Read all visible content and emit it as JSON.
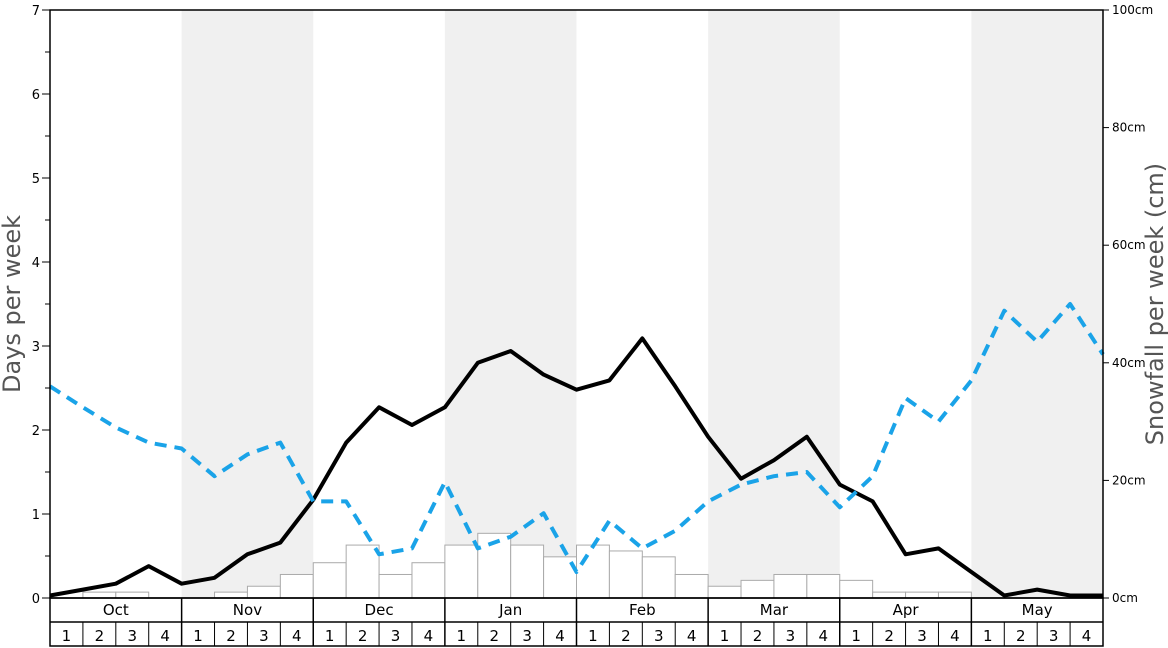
{
  "chart_data": {
    "type": "bar",
    "left_axis": {
      "title": "Days per week",
      "min": 0,
      "max": 7,
      "ticks": [
        "0",
        "1",
        "2",
        "3",
        "4",
        "5",
        "6",
        "7"
      ]
    },
    "right_axis": {
      "title": "Snowfall per week (cm)",
      "min": 0,
      "max": 100,
      "ticks": [
        "0cm",
        "20cm",
        "40cm",
        "60cm",
        "80cm",
        "100cm"
      ]
    },
    "months": [
      "Oct",
      "Nov",
      "Dec",
      "Jan",
      "Feb",
      "Mar",
      "Apr",
      "May"
    ],
    "weeks": [
      "1",
      "2",
      "3",
      "4"
    ],
    "shaded_months": [
      "Nov",
      "Jan",
      "Mar",
      "May"
    ],
    "snowfall_bars_cm": [
      0,
      1,
      1,
      0,
      0,
      1,
      2,
      4,
      6,
      9,
      4,
      6,
      9,
      11,
      9,
      7,
      9,
      8,
      7,
      4,
      2,
      3,
      4,
      4,
      3,
      1,
      1,
      1,
      0,
      0,
      0,
      0
    ],
    "series": [
      {
        "style": "solid-black",
        "axis": "left",
        "values": [
          0.03,
          0.1,
          0.17,
          0.38,
          0.17,
          0.24,
          0.52,
          0.66,
          1.17,
          1.85,
          2.27,
          2.06,
          2.27,
          2.8,
          2.94,
          2.66,
          2.48,
          2.59,
          3.09,
          2.52,
          1.92,
          1.42,
          1.64,
          1.92,
          1.35,
          1.15,
          0.52,
          0.59,
          0.31,
          0.03,
          0.1,
          0.03,
          0.03
        ]
      },
      {
        "style": "dashed-blue",
        "axis": "left",
        "values": [
          2.52,
          2.27,
          2.03,
          1.85,
          1.78,
          1.45,
          1.71,
          1.85,
          1.15,
          1.15,
          0.52,
          0.59,
          1.38,
          0.59,
          0.73,
          1.01,
          0.31,
          0.92,
          0.59,
          0.8,
          1.15,
          1.35,
          1.45,
          1.5,
          1.08,
          1.45,
          2.38,
          2.1,
          2.59,
          3.42,
          3.05,
          3.5,
          2.9
        ]
      }
    ]
  }
}
